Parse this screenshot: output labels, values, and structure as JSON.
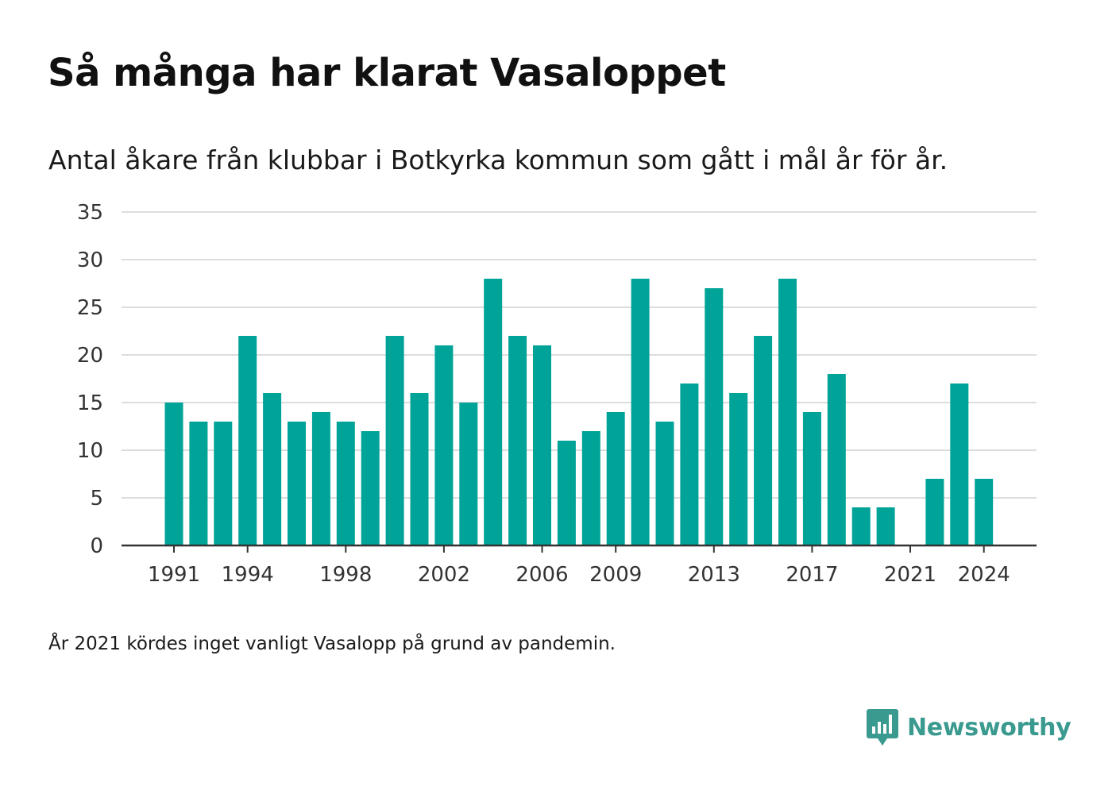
{
  "title": "Så många har klarat Vasaloppet",
  "subtitle": "Antal åkare från klubbar i Botkyrka kommun som gått i mål år för år.",
  "footnote": "År 2021 kördes inget vanligt Vasalopp på grund av pandemin.",
  "brand": {
    "name": "Newsworthy",
    "color": "#3a9a8f",
    "logo_icon": "bar-chart-speech-bubble-icon"
  },
  "colors": {
    "bar": "#00a398",
    "grid": "#dddddd",
    "axis": "#333333",
    "text": "#1a1a1a"
  },
  "chart_data": {
    "type": "bar",
    "x": [
      1991,
      1992,
      1993,
      1994,
      1995,
      1996,
      1997,
      1998,
      1999,
      2000,
      2001,
      2002,
      2003,
      2004,
      2005,
      2006,
      2007,
      2008,
      2009,
      2010,
      2011,
      2012,
      2013,
      2014,
      2015,
      2016,
      2017,
      2018,
      2019,
      2020,
      2021,
      2022,
      2023,
      2024
    ],
    "values": [
      15,
      13,
      13,
      22,
      16,
      13,
      14,
      13,
      12,
      22,
      16,
      21,
      15,
      28,
      22,
      21,
      11,
      12,
      14,
      28,
      13,
      17,
      27,
      16,
      22,
      28,
      14,
      18,
      4,
      4,
      0,
      7,
      17,
      7
    ],
    "x_tick_labels": [
      "1991",
      "1994",
      "1998",
      "2002",
      "2006",
      "2009",
      "2013",
      "2017",
      "2021",
      "2024"
    ],
    "y_ticks": [
      0,
      5,
      10,
      15,
      20,
      25,
      30,
      35
    ],
    "ylim": [
      0,
      35
    ],
    "xlabel": "",
    "ylabel": "",
    "grid": true,
    "legend": false
  }
}
